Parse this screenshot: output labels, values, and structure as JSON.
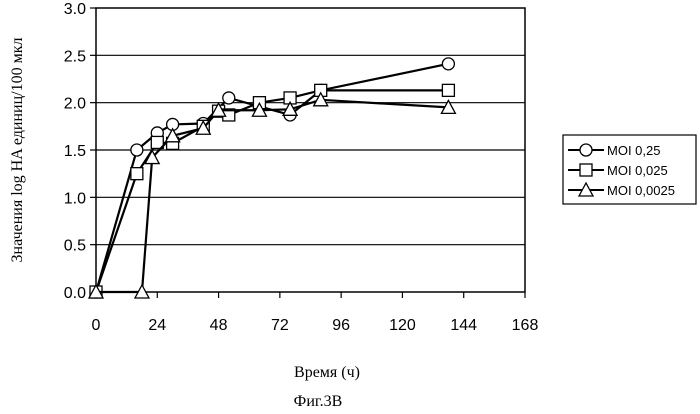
{
  "chart_data": {
    "type": "line",
    "ylabel": "Значения log HA единиц/100 мкл",
    "xlabel": "Время (ч)",
    "caption": "Фиг.3В",
    "xlim": [
      0,
      168
    ],
    "ylim": [
      0,
      3.0
    ],
    "xticks": [
      "0",
      "24",
      "48",
      "72",
      "96",
      "120",
      "144",
      "168"
    ],
    "yticks": [
      "0.0",
      "0.5",
      "1.0",
      "1.5",
      "2.0",
      "2.5",
      "3.0"
    ],
    "grid": "horizontal",
    "legend_position": "right",
    "series": [
      {
        "name": "MOI 0,25",
        "marker": "circle",
        "x": [
          0,
          16,
          24,
          30,
          42,
          52,
          64,
          76,
          88,
          138
        ],
        "y": [
          0,
          1.5,
          1.68,
          1.77,
          1.78,
          2.05,
          1.96,
          1.87,
          2.13,
          2.41
        ]
      },
      {
        "name": "MOI 0,025",
        "marker": "square",
        "x": [
          0,
          16,
          24,
          30,
          42,
          48,
          52,
          64,
          76,
          88,
          138
        ],
        "y": [
          0,
          1.25,
          1.58,
          1.57,
          1.75,
          1.91,
          1.87,
          2.0,
          2.05,
          2.13,
          2.13
        ]
      },
      {
        "name": "MOI 0,0025",
        "marker": "triangle",
        "x": [
          0,
          18,
          22,
          30,
          42,
          48,
          64,
          76,
          88,
          138
        ],
        "y": [
          0,
          0,
          1.42,
          1.65,
          1.73,
          1.92,
          1.92,
          1.93,
          2.03,
          1.95
        ]
      }
    ]
  }
}
